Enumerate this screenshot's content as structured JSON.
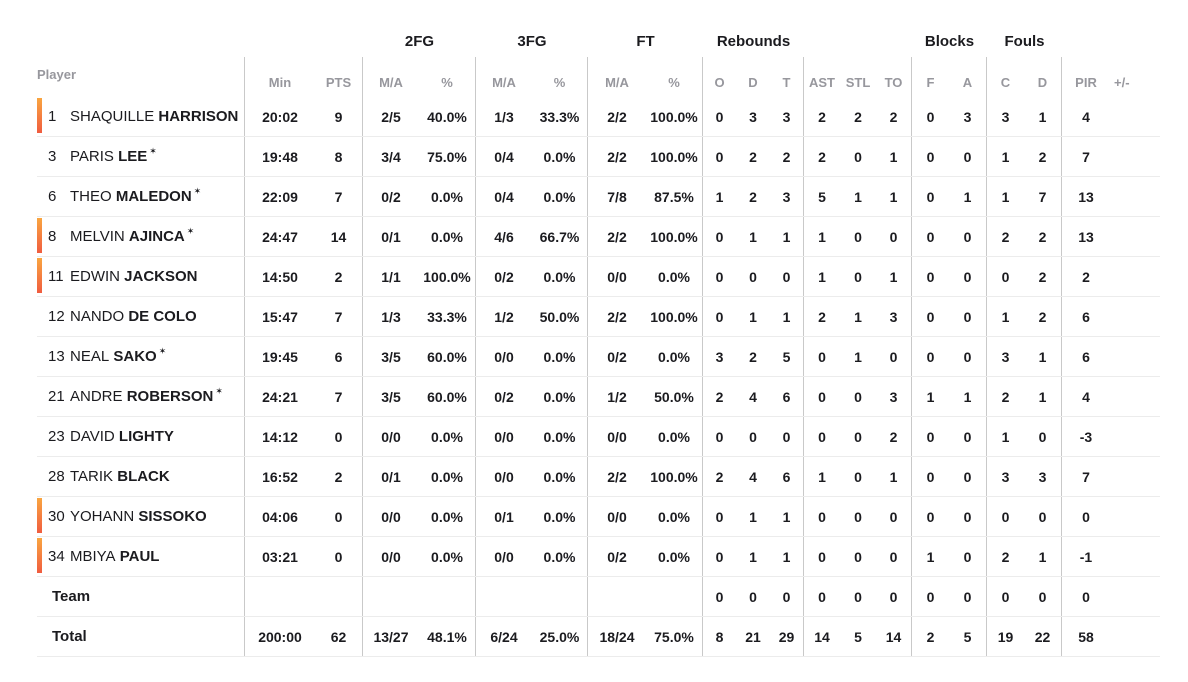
{
  "header": {
    "player_label": "Player",
    "groups": {
      "fg2": "2FG",
      "fg3": "3FG",
      "ft": "FT",
      "rebounds": "Rebounds",
      "blocks": "Blocks",
      "fouls": "Fouls"
    },
    "stats": {
      "min": "Min",
      "pts": "PTS",
      "ma": "M/A",
      "pct": "%",
      "reb_o": "O",
      "reb_d": "D",
      "reb_t": "T",
      "ast": "AST",
      "stl": "STL",
      "to": "TO",
      "blk_f": "F",
      "blk_a": "A",
      "foul_c": "C",
      "foul_d": "D",
      "pir": "PIR",
      "plusminus": "+/-"
    }
  },
  "icons": {
    "starter_star": "✶",
    "on_court_indicator": "orange-gradient-bar"
  },
  "colors": {
    "on_court_gradient_top": "#F9A540",
    "on_court_gradient_bottom": "#F05C3F",
    "text": "#1B1B1F",
    "muted_header": "#97979D",
    "column_divider": "#C9C9C9",
    "row_line": "#ECECEC"
  },
  "rows": [
    {
      "type": "player",
      "on_court": true,
      "starter": false,
      "number": "1",
      "first_name": "SHAQUILLE",
      "last_name": "HARRISON",
      "min": "20:02",
      "pts": "9",
      "fg2_ma": "2/5",
      "fg2_pct": "40.0%",
      "fg3_ma": "1/3",
      "fg3_pct": "33.3%",
      "ft_ma": "2/2",
      "ft_pct": "100.0%",
      "reb_o": "0",
      "reb_d": "3",
      "reb_t": "3",
      "ast": "2",
      "stl": "2",
      "to": "2",
      "blk_f": "0",
      "blk_a": "3",
      "foul_c": "3",
      "foul_d": "1",
      "pir": "4",
      "plusminus": ""
    },
    {
      "type": "player",
      "on_court": false,
      "starter": true,
      "number": "3",
      "first_name": "PARIS",
      "last_name": "LEE",
      "min": "19:48",
      "pts": "8",
      "fg2_ma": "3/4",
      "fg2_pct": "75.0%",
      "fg3_ma": "0/4",
      "fg3_pct": "0.0%",
      "ft_ma": "2/2",
      "ft_pct": "100.0%",
      "reb_o": "0",
      "reb_d": "2",
      "reb_t": "2",
      "ast": "2",
      "stl": "0",
      "to": "1",
      "blk_f": "0",
      "blk_a": "0",
      "foul_c": "1",
      "foul_d": "2",
      "pir": "7",
      "plusminus": ""
    },
    {
      "type": "player",
      "on_court": false,
      "starter": true,
      "number": "6",
      "first_name": "THEO",
      "last_name": "MALEDON",
      "min": "22:09",
      "pts": "7",
      "fg2_ma": "0/2",
      "fg2_pct": "0.0%",
      "fg3_ma": "0/4",
      "fg3_pct": "0.0%",
      "ft_ma": "7/8",
      "ft_pct": "87.5%",
      "reb_o": "1",
      "reb_d": "2",
      "reb_t": "3",
      "ast": "5",
      "stl": "1",
      "to": "1",
      "blk_f": "0",
      "blk_a": "1",
      "foul_c": "1",
      "foul_d": "7",
      "pir": "13",
      "plusminus": ""
    },
    {
      "type": "player",
      "on_court": true,
      "starter": true,
      "number": "8",
      "first_name": "MELVIN",
      "last_name": "AJINCA",
      "min": "24:47",
      "pts": "14",
      "fg2_ma": "0/1",
      "fg2_pct": "0.0%",
      "fg3_ma": "4/6",
      "fg3_pct": "66.7%",
      "ft_ma": "2/2",
      "ft_pct": "100.0%",
      "reb_o": "0",
      "reb_d": "1",
      "reb_t": "1",
      "ast": "1",
      "stl": "0",
      "to": "0",
      "blk_f": "0",
      "blk_a": "0",
      "foul_c": "2",
      "foul_d": "2",
      "pir": "13",
      "plusminus": ""
    },
    {
      "type": "player",
      "on_court": true,
      "starter": false,
      "number": "11",
      "first_name": "EDWIN",
      "last_name": "JACKSON",
      "min": "14:50",
      "pts": "2",
      "fg2_ma": "1/1",
      "fg2_pct": "100.0%",
      "fg3_ma": "0/2",
      "fg3_pct": "0.0%",
      "ft_ma": "0/0",
      "ft_pct": "0.0%",
      "reb_o": "0",
      "reb_d": "0",
      "reb_t": "0",
      "ast": "1",
      "stl": "0",
      "to": "1",
      "blk_f": "0",
      "blk_a": "0",
      "foul_c": "0",
      "foul_d": "2",
      "pir": "2",
      "plusminus": ""
    },
    {
      "type": "player",
      "on_court": false,
      "starter": false,
      "number": "12",
      "first_name": "NANDO",
      "last_name": "DE COLO",
      "min": "15:47",
      "pts": "7",
      "fg2_ma": "1/3",
      "fg2_pct": "33.3%",
      "fg3_ma": "1/2",
      "fg3_pct": "50.0%",
      "ft_ma": "2/2",
      "ft_pct": "100.0%",
      "reb_o": "0",
      "reb_d": "1",
      "reb_t": "1",
      "ast": "2",
      "stl": "1",
      "to": "3",
      "blk_f": "0",
      "blk_a": "0",
      "foul_c": "1",
      "foul_d": "2",
      "pir": "6",
      "plusminus": ""
    },
    {
      "type": "player",
      "on_court": false,
      "starter": true,
      "number": "13",
      "first_name": "NEAL",
      "last_name": "SAKO",
      "min": "19:45",
      "pts": "6",
      "fg2_ma": "3/5",
      "fg2_pct": "60.0%",
      "fg3_ma": "0/0",
      "fg3_pct": "0.0%",
      "ft_ma": "0/2",
      "ft_pct": "0.0%",
      "reb_o": "3",
      "reb_d": "2",
      "reb_t": "5",
      "ast": "0",
      "stl": "1",
      "to": "0",
      "blk_f": "0",
      "blk_a": "0",
      "foul_c": "3",
      "foul_d": "1",
      "pir": "6",
      "plusminus": ""
    },
    {
      "type": "player",
      "on_court": false,
      "starter": true,
      "number": "21",
      "first_name": "ANDRE",
      "last_name": "ROBERSON",
      "min": "24:21",
      "pts": "7",
      "fg2_ma": "3/5",
      "fg2_pct": "60.0%",
      "fg3_ma": "0/2",
      "fg3_pct": "0.0%",
      "ft_ma": "1/2",
      "ft_pct": "50.0%",
      "reb_o": "2",
      "reb_d": "4",
      "reb_t": "6",
      "ast": "0",
      "stl": "0",
      "to": "3",
      "blk_f": "1",
      "blk_a": "1",
      "foul_c": "2",
      "foul_d": "1",
      "pir": "4",
      "plusminus": ""
    },
    {
      "type": "player",
      "on_court": false,
      "starter": false,
      "number": "23",
      "first_name": "DAVID",
      "last_name": "LIGHTY",
      "min": "14:12",
      "pts": "0",
      "fg2_ma": "0/0",
      "fg2_pct": "0.0%",
      "fg3_ma": "0/0",
      "fg3_pct": "0.0%",
      "ft_ma": "0/0",
      "ft_pct": "0.0%",
      "reb_o": "0",
      "reb_d": "0",
      "reb_t": "0",
      "ast": "0",
      "stl": "0",
      "to": "2",
      "blk_f": "0",
      "blk_a": "0",
      "foul_c": "1",
      "foul_d": "0",
      "pir": "-3",
      "plusminus": ""
    },
    {
      "type": "player",
      "on_court": false,
      "starter": false,
      "number": "28",
      "first_name": "TARIK",
      "last_name": "BLACK",
      "min": "16:52",
      "pts": "2",
      "fg2_ma": "0/1",
      "fg2_pct": "0.0%",
      "fg3_ma": "0/0",
      "fg3_pct": "0.0%",
      "ft_ma": "2/2",
      "ft_pct": "100.0%",
      "reb_o": "2",
      "reb_d": "4",
      "reb_t": "6",
      "ast": "1",
      "stl": "0",
      "to": "1",
      "blk_f": "0",
      "blk_a": "0",
      "foul_c": "3",
      "foul_d": "3",
      "pir": "7",
      "plusminus": ""
    },
    {
      "type": "player",
      "on_court": true,
      "starter": false,
      "number": "30",
      "first_name": "YOHANN",
      "last_name": "SISSOKO",
      "min": "04:06",
      "pts": "0",
      "fg2_ma": "0/0",
      "fg2_pct": "0.0%",
      "fg3_ma": "0/1",
      "fg3_pct": "0.0%",
      "ft_ma": "0/0",
      "ft_pct": "0.0%",
      "reb_o": "0",
      "reb_d": "1",
      "reb_t": "1",
      "ast": "0",
      "stl": "0",
      "to": "0",
      "blk_f": "0",
      "blk_a": "0",
      "foul_c": "0",
      "foul_d": "0",
      "pir": "0",
      "plusminus": ""
    },
    {
      "type": "player",
      "on_court": true,
      "starter": false,
      "number": "34",
      "first_name": "MBIYA",
      "last_name": "PAUL",
      "min": "03:21",
      "pts": "0",
      "fg2_ma": "0/0",
      "fg2_pct": "0.0%",
      "fg3_ma": "0/0",
      "fg3_pct": "0.0%",
      "ft_ma": "0/2",
      "ft_pct": "0.0%",
      "reb_o": "0",
      "reb_d": "1",
      "reb_t": "1",
      "ast": "0",
      "stl": "0",
      "to": "0",
      "blk_f": "1",
      "blk_a": "0",
      "foul_c": "2",
      "foul_d": "1",
      "pir": "-1",
      "plusminus": ""
    },
    {
      "type": "team",
      "label": "Team",
      "min": "",
      "pts": "",
      "fg2_ma": "",
      "fg2_pct": "",
      "fg3_ma": "",
      "fg3_pct": "",
      "ft_ma": "",
      "ft_pct": "",
      "reb_o": "0",
      "reb_d": "0",
      "reb_t": "0",
      "ast": "0",
      "stl": "0",
      "to": "0",
      "blk_f": "0",
      "blk_a": "0",
      "foul_c": "0",
      "foul_d": "0",
      "pir": "0",
      "plusminus": ""
    },
    {
      "type": "total",
      "label": "Total",
      "min": "200:00",
      "pts": "62",
      "fg2_ma": "13/27",
      "fg2_pct": "48.1%",
      "fg3_ma": "6/24",
      "fg3_pct": "25.0%",
      "ft_ma": "18/24",
      "ft_pct": "75.0%",
      "reb_o": "8",
      "reb_d": "21",
      "reb_t": "29",
      "ast": "14",
      "stl": "5",
      "to": "14",
      "blk_f": "2",
      "blk_a": "5",
      "foul_c": "19",
      "foul_d": "22",
      "pir": "58",
      "plusminus": ""
    }
  ]
}
